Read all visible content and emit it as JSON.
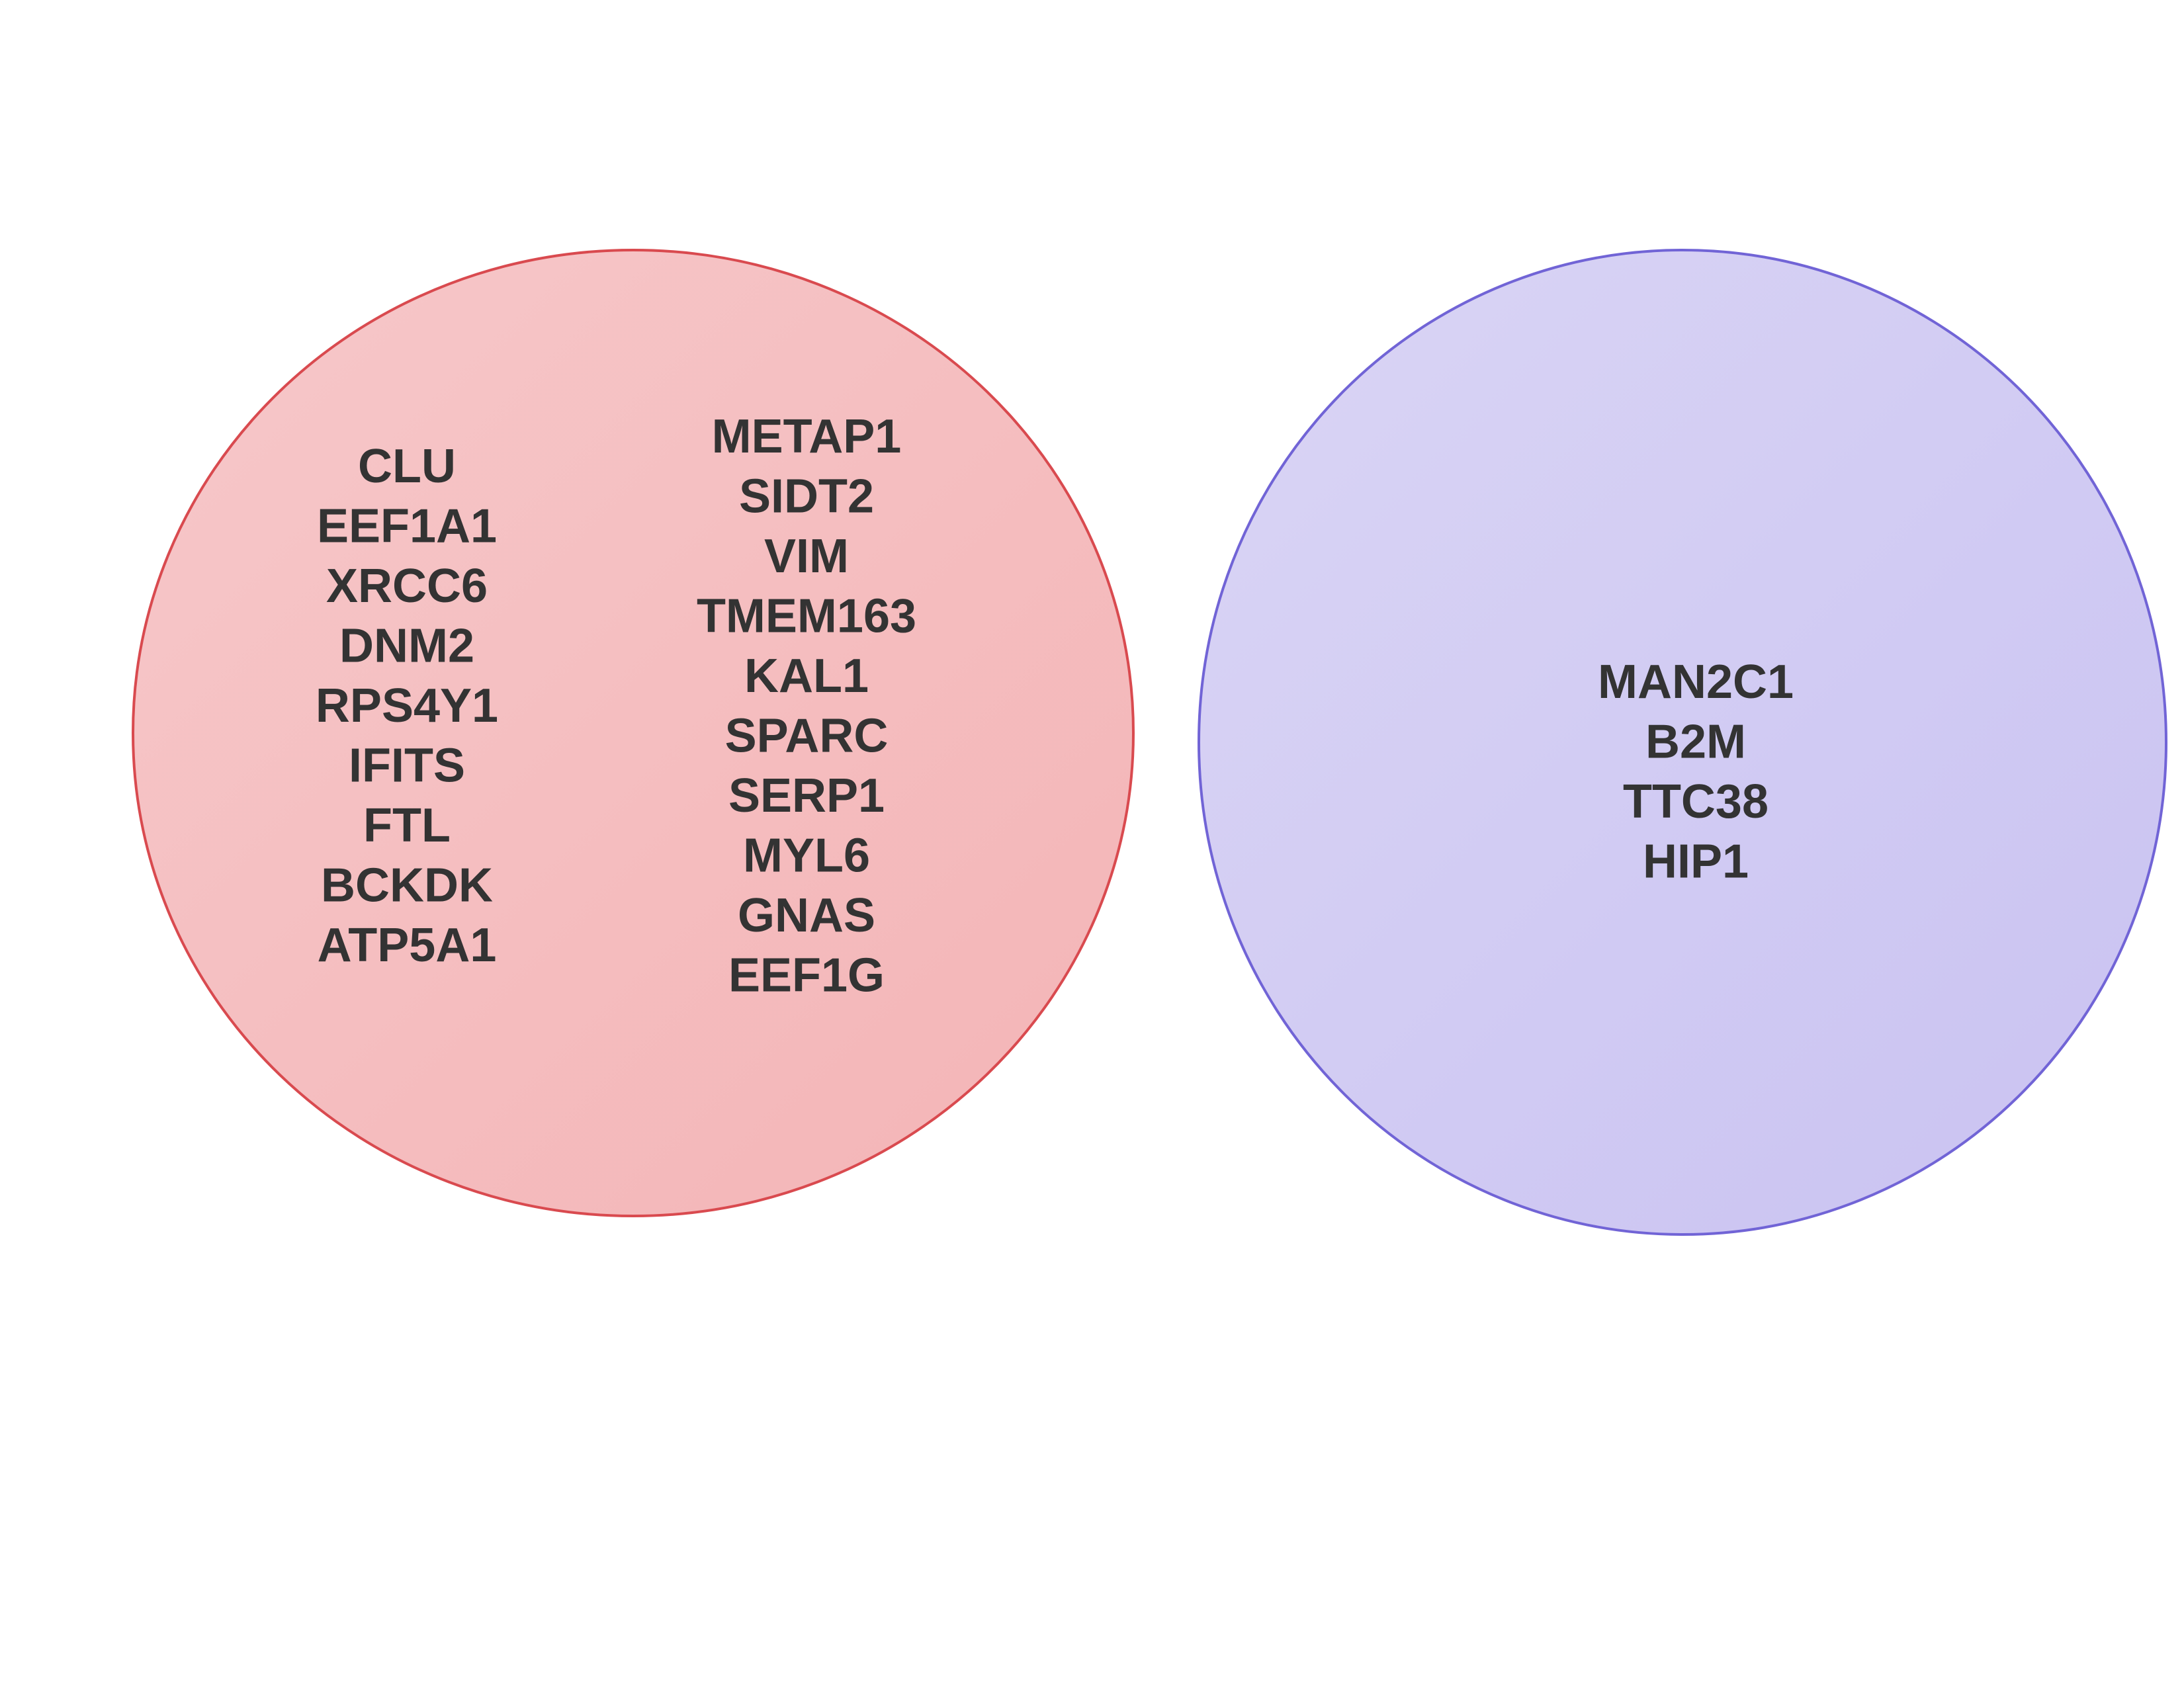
{
  "diagram": {
    "type": "venn",
    "sets": [
      {
        "color_fill": "#f4b4b6",
        "color_fill_light": "#f6c8ca",
        "color_stroke": "#d94a4f",
        "columns": [
          [
            "CLU",
            "EEF1A1",
            "XRCC6",
            "DNM2",
            "RPS4Y1",
            "IFITS",
            "FTL",
            "BCKDK",
            "ATP5A1"
          ],
          [
            "METAP1",
            "SIDT2",
            "VIM",
            "TMEM163",
            "KAL1",
            "SPARC",
            "SERP1",
            "MYL6",
            "GNAS",
            "EEF1G"
          ]
        ]
      },
      {
        "color_fill": "#c9c2f2",
        "color_fill_light": "#dad5f4",
        "color_stroke": "#7164d6",
        "columns": [
          [
            "MAN2C1",
            "B2M",
            "TTC38",
            "HIP1"
          ]
        ]
      }
    ],
    "text_color": "#333333"
  }
}
